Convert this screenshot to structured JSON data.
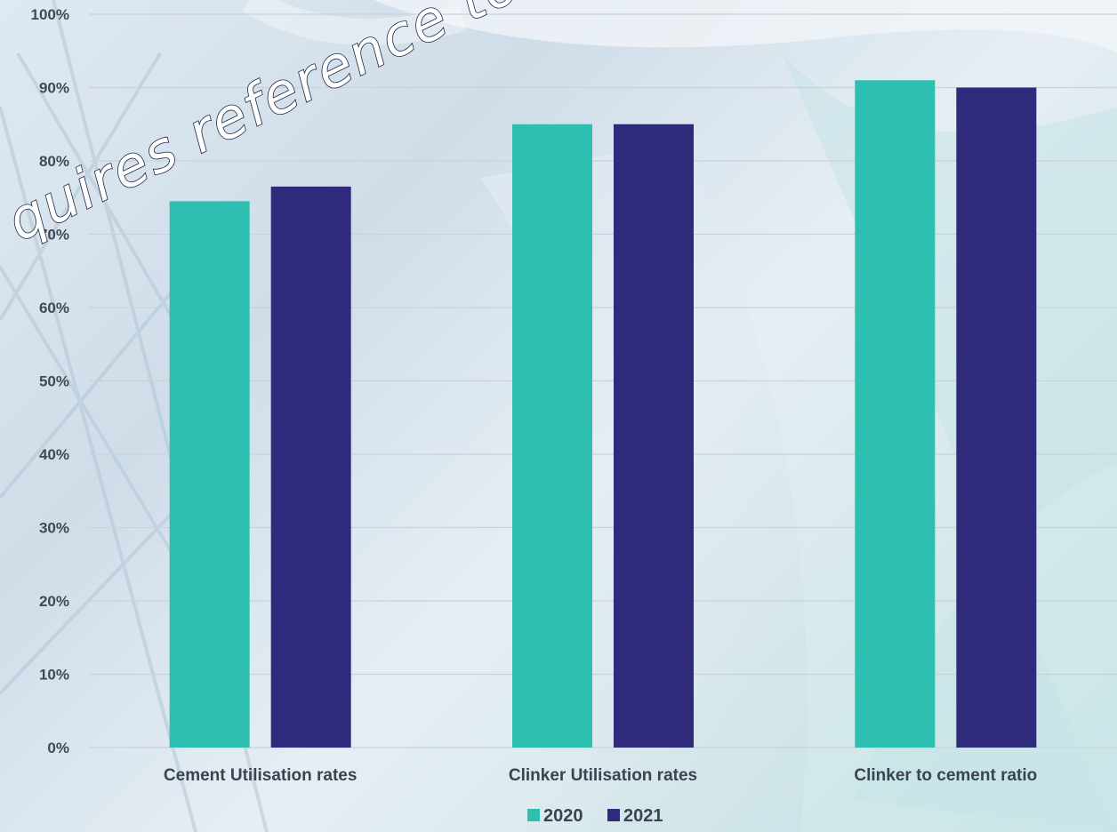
{
  "watermark": "quires reference to c",
  "chart_data": {
    "type": "bar",
    "categories": [
      "Cement Utilisation rates",
      "Clinker Utilisation rates",
      "Clinker to cement ratio"
    ],
    "series": [
      {
        "name": "2020",
        "color": "#2ebfb1",
        "values": [
          74.5,
          85,
          91
        ]
      },
      {
        "name": "2021",
        "color": "#2f2a7c",
        "values": [
          76.5,
          85,
          90
        ]
      }
    ],
    "yticks": [
      "0%",
      "10%",
      "20%",
      "30%",
      "40%",
      "50%",
      "60%",
      "70%",
      "80%",
      "90%",
      "100%"
    ],
    "ylim": [
      0,
      100
    ],
    "grid": true,
    "legend_position": "bottom-center"
  }
}
